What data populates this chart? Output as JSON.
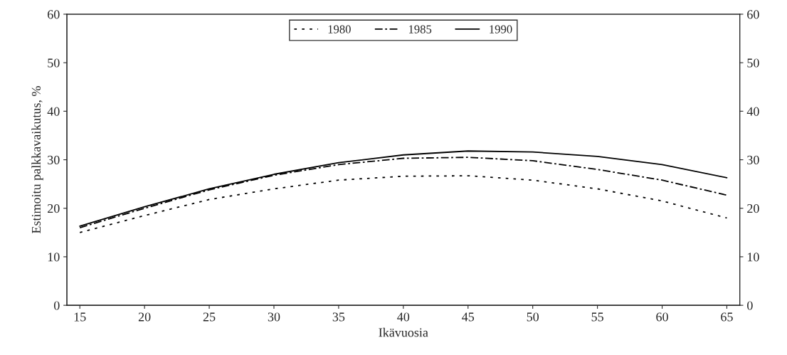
{
  "chart_data": {
    "type": "line",
    "xlabel": "Ikävuosia",
    "ylabel": "Estimoitu palkkavaikutus, %",
    "x": [
      15,
      20,
      25,
      30,
      35,
      40,
      45,
      50,
      55,
      60,
      65
    ],
    "series": [
      {
        "name": "1980",
        "color": "#000000",
        "line_style": "dotted",
        "values": [
          15,
          18.5,
          21.8,
          24,
          25.8,
          26.6,
          26.7,
          25.8,
          24,
          21.5,
          18
        ]
      },
      {
        "name": "1985",
        "color": "#000000",
        "line_style": "dashdot",
        "values": [
          16,
          20,
          23.8,
          26.8,
          29,
          30.3,
          30.5,
          29.8,
          28,
          25.8,
          22.7
        ]
      },
      {
        "name": "1990",
        "color": "#000000",
        "line_style": "solid",
        "values": [
          16.3,
          20.3,
          24,
          27,
          29.4,
          31,
          31.8,
          31.6,
          30.7,
          29,
          26.3
        ]
      }
    ],
    "xlim": [
      14,
      66
    ],
    "xticks": [
      15,
      20,
      25,
      30,
      35,
      40,
      45,
      50,
      55,
      60,
      65
    ],
    "ylim": [
      0,
      60
    ],
    "yticks": [
      0,
      10,
      20,
      30,
      40,
      50,
      60
    ],
    "y2lim": [
      0,
      60
    ],
    "y2ticks": [
      0,
      10,
      20,
      30,
      40,
      50,
      60
    ],
    "legend": "top",
    "grid": false,
    "marker": "none"
  }
}
